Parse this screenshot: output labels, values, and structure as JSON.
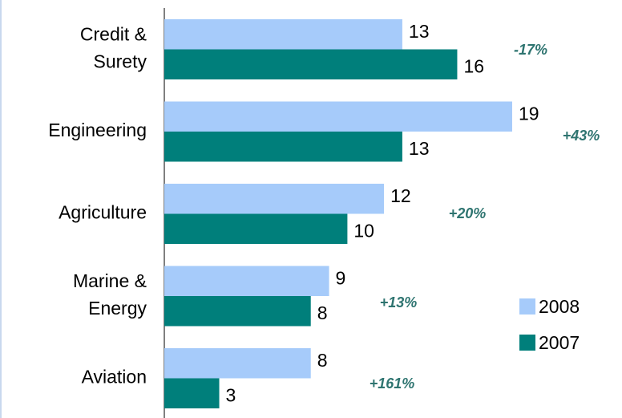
{
  "chart_data": {
    "type": "bar",
    "orientation": "horizontal",
    "categories": [
      [
        "Credit &",
        "Surety"
      ],
      [
        "Engineering"
      ],
      [
        "Agriculture"
      ],
      [
        "Marine &",
        "Energy"
      ],
      [
        "Aviation"
      ]
    ],
    "series": [
      {
        "name": "2008",
        "color": "#a6cbfa",
        "values": [
          13,
          19,
          12,
          9,
          8
        ]
      },
      {
        "name": "2007",
        "color": "#007f7b",
        "values": [
          16,
          13,
          10,
          8,
          3
        ]
      }
    ],
    "annotations": [
      "-17%",
      "+43%",
      "+20%",
      "+13%",
      "+161%"
    ],
    "xlim": [
      0,
      25
    ],
    "legend": "right"
  }
}
